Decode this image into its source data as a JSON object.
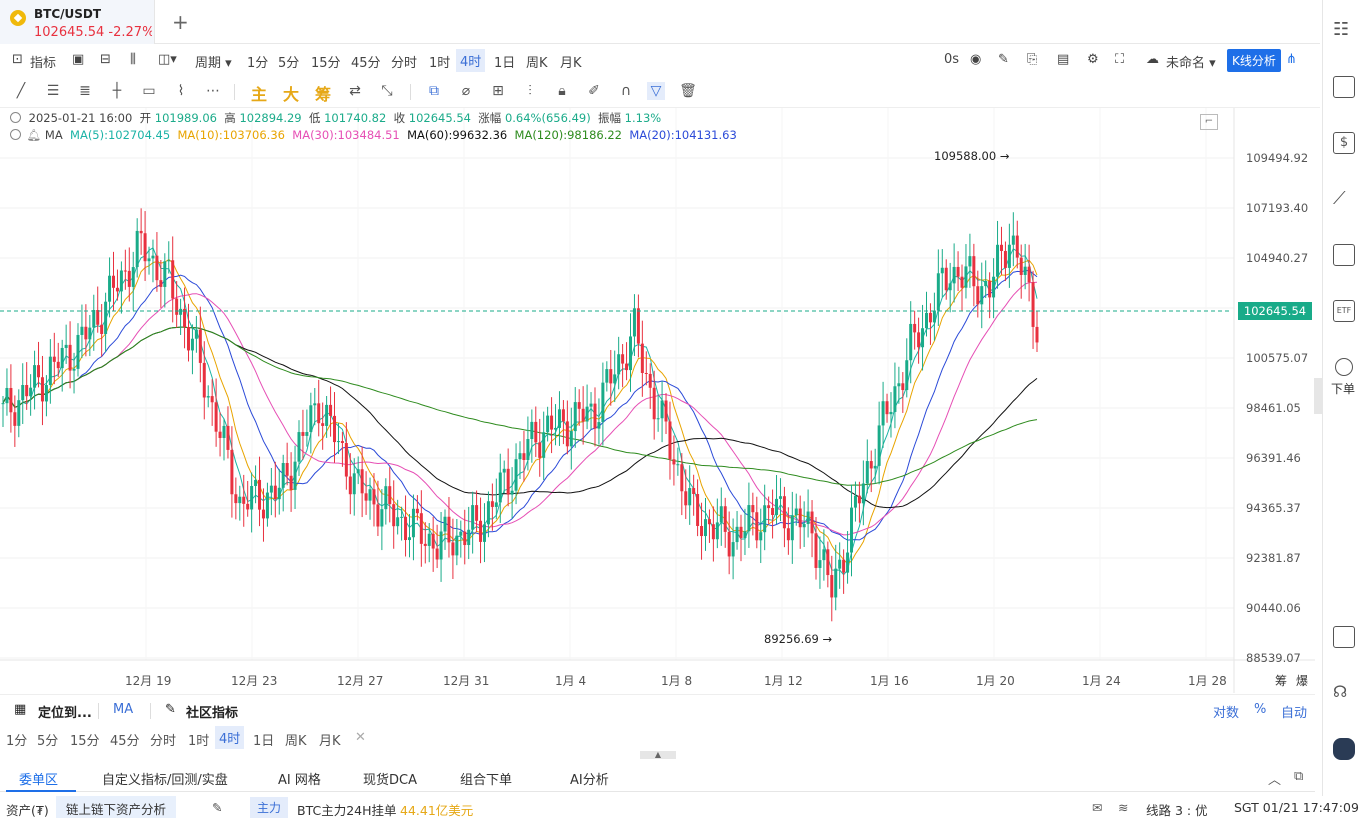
{
  "symbol_tab": {
    "name": "BTC/USDT",
    "price_change": "102645.54 -2.27%"
  },
  "toolbar": {
    "indicator": "指标",
    "period_label": "周期",
    "intervals": [
      "1分",
      "5分",
      "15分",
      "45分",
      "分时",
      "1时",
      "4时",
      "1日",
      "周K",
      "月K"
    ],
    "active_interval": "4时",
    "countdown": "0s",
    "layout_name": "未命名",
    "kline_analysis": "K线分析"
  },
  "drawing_tools": {
    "main": "主",
    "big": "大",
    "chip": "筹"
  },
  "ohlc": {
    "datetime": "2025-01-21 16:00",
    "open_label": "开",
    "open": "101989.06",
    "high_label": "高",
    "high": "102894.29",
    "low_label": "低",
    "low": "101740.82",
    "close_label": "收",
    "close": "102645.54",
    "change_label": "涨幅",
    "change": "0.64%(656.49)",
    "amp_label": "振幅",
    "amp": "1.13%"
  },
  "ma": {
    "label": "MA",
    "ma5": "MA(5):102704.45",
    "ma10": "MA(10):103706.36",
    "ma30": "MA(30):103484.51",
    "ma60": "MA(60):99632.36",
    "ma120": "MA(120):98186.22",
    "ma20": "MA(20):104131.63",
    "colors": {
      "ma5": "#1bb3a6",
      "ma10": "#e8a400",
      "ma30": "#e64fb5",
      "ma60": "#111111",
      "ma120": "#2e8b1e",
      "ma20": "#2b4ad8"
    }
  },
  "chart_data": {
    "type": "candlestick",
    "price_axis": [
      "109494.92",
      "107193.40",
      "104940.27",
      "102645.54",
      "100575.07",
      "98461.05",
      "96391.46",
      "94365.37",
      "92381.87",
      "90440.06",
      "88539.07"
    ],
    "date_axis": [
      "12月 19",
      "12月 23",
      "12月 27",
      "12月 31",
      "1月 4",
      "1月 8",
      "1月 12",
      "1月 16",
      "1月 20",
      "1月 24",
      "1月 28"
    ],
    "current_price": "102645.54",
    "high_annotation": "109588.00 →",
    "low_annotation": "89256.69 →",
    "up_color": "#19ab89",
    "down_color": "#e8313f"
  },
  "bottom_bar": {
    "locate": "定位到...",
    "ma_label": "MA",
    "community": "社区指标",
    "intervals": [
      "1分",
      "5分",
      "15分",
      "45分",
      "分时",
      "1时",
      "4时",
      "1日",
      "周K",
      "月K"
    ],
    "active": "4时",
    "right_items": [
      "筹",
      "爆"
    ],
    "scale_opts": [
      "对数",
      "%",
      "自动"
    ]
  },
  "panel_tabs": [
    "委单区",
    "自定义指标/回测/实盘",
    "AI 网格",
    "现货DCA",
    "组合下单",
    "AI分析"
  ],
  "status_bar": {
    "assets": "资产(₮)",
    "asset_analysis": "链上链下资产分析",
    "main_tag": "主力",
    "main_text": "BTC主力24H挂单",
    "main_value": "44.41亿美元",
    "line": "线路 3 : 优",
    "time": "SGT 01/21 17:47:09"
  },
  "sidebar": {
    "place_order": "下单"
  }
}
